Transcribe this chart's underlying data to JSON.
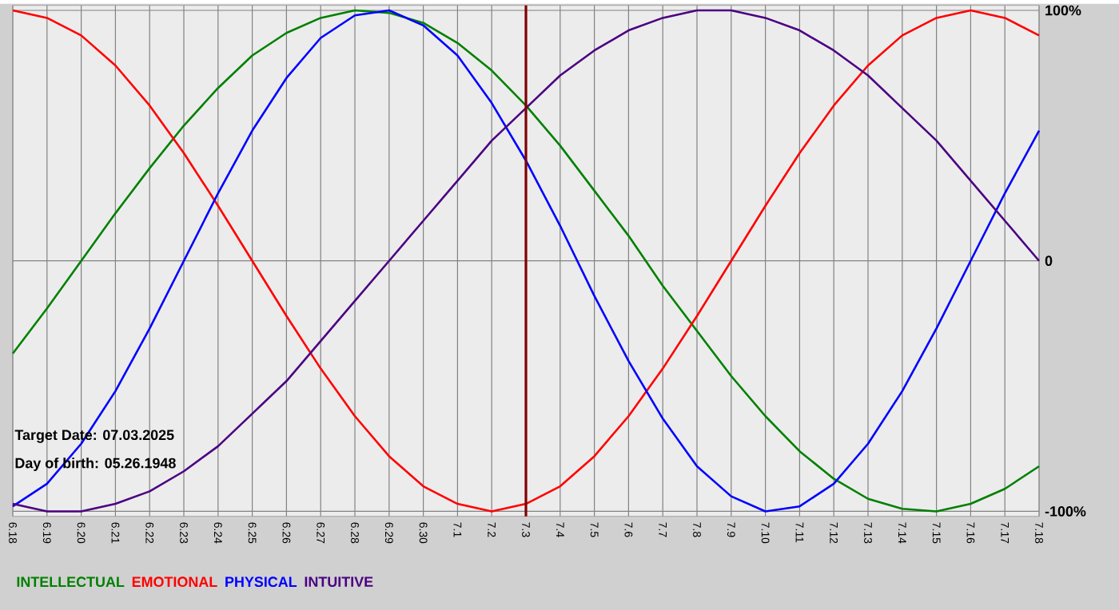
{
  "chart_data": {
    "type": "line",
    "categories": [
      "6.18",
      "6.19",
      "6.20",
      "6.21",
      "6.22",
      "6.23",
      "6.24",
      "6.25",
      "6.26",
      "6.27",
      "6.28",
      "6.29",
      "6.30",
      "7.1",
      "7.2",
      "7.3",
      "7.4",
      "7.5",
      "7.6",
      "7.7",
      "7.8",
      "7.9",
      "7.10",
      "7.11",
      "7.12",
      "7.13",
      "7.14",
      "7.15",
      "7.16",
      "7.17",
      "7.18"
    ],
    "series": [
      {
        "name": "INTELLECTUAL",
        "color": "#008000",
        "values": [
          -37,
          -19,
          0,
          19,
          37,
          54,
          69,
          82,
          91,
          97,
          100,
          99,
          95,
          87,
          76,
          62,
          46,
          28,
          10,
          -10,
          -28,
          -46,
          -62,
          -76,
          -87,
          -95,
          -99,
          -100,
          -97,
          -91,
          -82
        ]
      },
      {
        "name": "EMOTIONAL",
        "color": "#ff0000",
        "values": [
          100,
          97,
          90,
          78,
          62,
          43,
          22,
          0,
          -22,
          -43,
          -62,
          -78,
          -90,
          -97,
          -100,
          -97,
          -90,
          -78,
          -62,
          -43,
          -22,
          0,
          22,
          43,
          62,
          78,
          90,
          97,
          100,
          97,
          90
        ]
      },
      {
        "name": "PHYSICAL",
        "color": "#0000ff",
        "values": [
          -98,
          -89,
          -73,
          -52,
          -27,
          0,
          27,
          52,
          73,
          89,
          98,
          100,
          94,
          82,
          63,
          40,
          14,
          -14,
          -40,
          -63,
          -82,
          -94,
          -100,
          -98,
          -89,
          -73,
          -52,
          -27,
          0,
          27,
          52
        ]
      },
      {
        "name": "INTUITIVE",
        "color": "#4b0082",
        "values": [
          -97,
          -100,
          -100,
          -97,
          -92,
          -84,
          -74,
          -61,
          -48,
          -32,
          -16,
          0,
          16,
          32,
          48,
          61,
          74,
          84,
          92,
          97,
          100,
          100,
          97,
          92,
          84,
          74,
          61,
          48,
          32,
          16,
          0
        ]
      }
    ],
    "ylim": [
      -102,
      102
    ],
    "yticks": [
      {
        "value": 100,
        "label": "100%"
      },
      0,
      {
        "value": -100,
        "label": "-100%"
      }
    ],
    "ref_lines": [
      {
        "axis": "x",
        "value": "7.3",
        "color": "#800000"
      }
    ],
    "annotations": [
      "Target Date: 07.03.2025",
      "Day of birth: 05.26.1948"
    ],
    "grid": true,
    "legend": "bottom",
    "marker": "none",
    "line_style": "solid"
  }
}
